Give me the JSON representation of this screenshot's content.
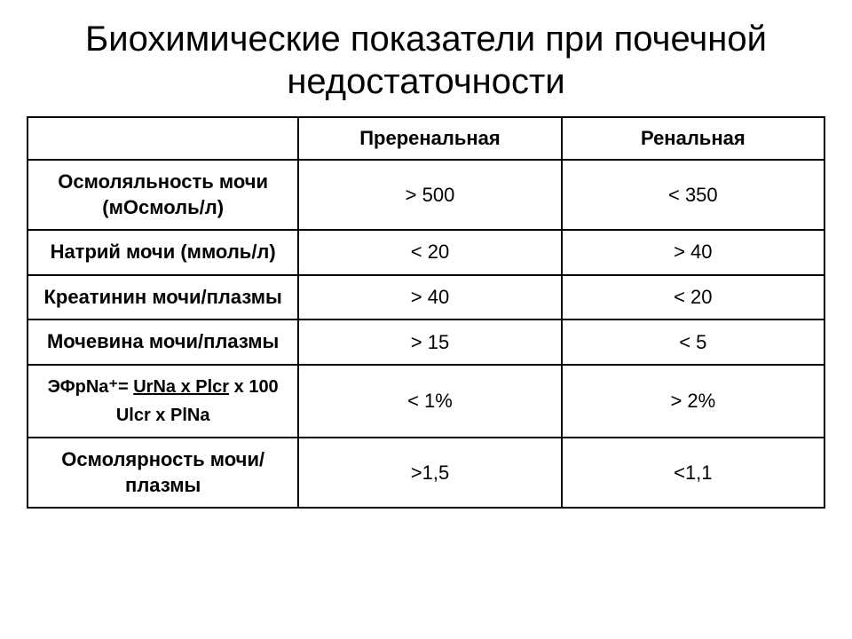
{
  "title": "Биохимические показатели при почечной недостаточности",
  "table": {
    "columns": [
      "",
      "Преренальная",
      "Ренальная"
    ],
    "rows": [
      {
        "label": "Осмоляльность мочи (мОсмоль/л)",
        "prerenal": "> 500",
        "renal": "< 350"
      },
      {
        "label": "Натрий мочи (ммоль/л)",
        "prerenal": "< 20",
        "renal": "> 40"
      },
      {
        "label": "Креатинин мочи/плазмы",
        "prerenal": "> 40",
        "renal": "< 20"
      },
      {
        "label": "Мочевина мочи/плазмы",
        "prerenal": "> 15",
        "renal": "< 5"
      },
      {
        "label_formula": {
          "line1_prefix": "ЭФрNa⁺= ",
          "line1_underlined": "UrNa x Plcr",
          "line1_suffix": " x 100",
          "line2": "Ulcr x PlNa"
        },
        "prerenal": "< 1%",
        "renal": "> 2%"
      },
      {
        "label": "Осмолярность мочи/плазмы",
        "prerenal": ">1,5",
        "renal": "<1,1"
      }
    ]
  },
  "style": {
    "background_color": "#ffffff",
    "text_color": "#000000",
    "border_color": "#000000",
    "title_fontsize": 40,
    "header_fontsize": 22,
    "cell_fontsize": 22,
    "label_fontsize": 22,
    "font_family": "Arial"
  }
}
